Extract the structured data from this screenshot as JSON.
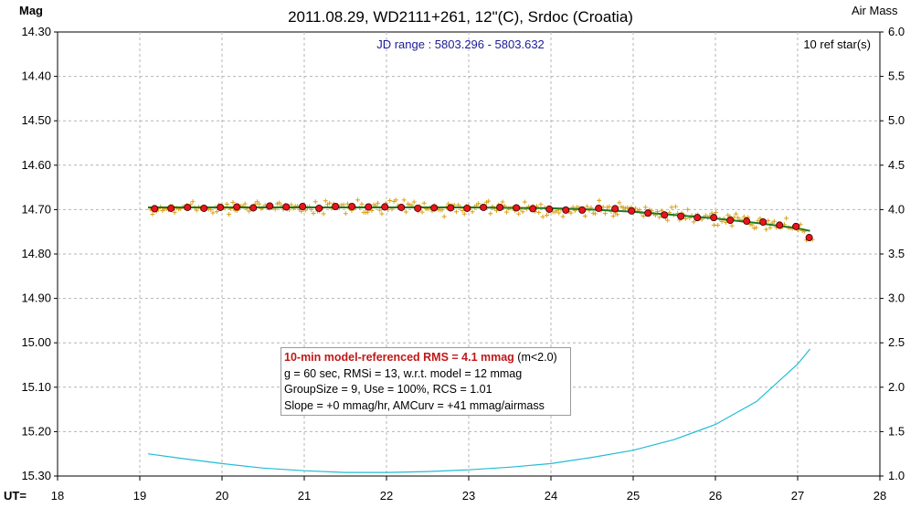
{
  "header": {
    "title": "2011.08.29, WD2111+261, 12\"(C), Srdoc (Croatia)",
    "left_axis_label": "Mag",
    "right_axis_label": "Air Mass",
    "jd_range": "JD range : 5803.296 - 5803.632",
    "ref_stars": "10 ref star(s)",
    "x_axis_prefix": "UT="
  },
  "info": {
    "rms_highlight": "10-min model-referenced RMS = 4.1 mmag",
    "rms_suffix": " (m<2.0)",
    "line2": "g = 60 sec, RMSi = 13, w.r.t. model = 12 mmag",
    "line3": "GroupSize = 9, Use = 100%, RCS = 1.01",
    "line4": "Slope = +0 mmag/hr, AMCurv = +41 mmag/airmass"
  },
  "colors": {
    "raw_points": "#d9a21a",
    "binned_points": "#e8141e",
    "model_line": "#1f7a1f",
    "airmass_line": "#22bcd4",
    "grid": "#b4b4b4"
  },
  "chart_data": {
    "type": "scatter",
    "title": "2011.08.29, WD2111+261, 12\"(C), Srdoc (Croatia)",
    "xlabel": "UT",
    "ylabel": "Mag",
    "y2label": "Air Mass",
    "xlim": [
      18,
      28
    ],
    "ylim": [
      15.3,
      14.3
    ],
    "y2lim": [
      1.0,
      6.0
    ],
    "grid": true,
    "x_ticks": [
      "18",
      "19",
      "20",
      "21",
      "22",
      "23",
      "24",
      "25",
      "26",
      "27",
      "28"
    ],
    "y_ticks": [
      "14.30",
      "14.40",
      "14.50",
      "14.60",
      "14.70",
      "14.80",
      "14.90",
      "15.00",
      "15.10",
      "15.20",
      "15.30"
    ],
    "y2_ticks": [
      "6.0",
      "5.5",
      "5.0",
      "4.5",
      "4.0",
      "3.5",
      "3.0",
      "2.5",
      "2.0",
      "1.5",
      "1.0"
    ],
    "series": [
      {
        "name": "binned",
        "x": [
          19.18,
          19.38,
          19.58,
          19.78,
          19.98,
          20.18,
          20.38,
          20.58,
          20.78,
          20.98,
          21.18,
          21.38,
          21.58,
          21.78,
          21.98,
          22.18,
          22.38,
          22.58,
          22.78,
          22.98,
          23.18,
          23.38,
          23.58,
          23.78,
          23.98,
          24.18,
          24.38,
          24.58,
          24.78,
          24.98,
          25.18,
          25.38,
          25.58,
          25.78,
          25.98,
          26.18,
          26.38,
          26.58,
          26.78,
          26.98,
          27.14
        ],
        "y": [
          14.698,
          14.697,
          14.695,
          14.697,
          14.695,
          14.694,
          14.696,
          14.692,
          14.694,
          14.693,
          14.697,
          14.693,
          14.693,
          14.694,
          14.694,
          14.695,
          14.697,
          14.696,
          14.696,
          14.697,
          14.695,
          14.695,
          14.696,
          14.698,
          14.699,
          14.701,
          14.701,
          14.697,
          14.698,
          14.703,
          14.708,
          14.712,
          14.715,
          14.718,
          14.718,
          14.724,
          14.726,
          14.728,
          14.735,
          14.738,
          14.763
        ]
      },
      {
        "name": "model",
        "x": [
          19.1,
          19.5,
          20.0,
          20.5,
          21.0,
          21.5,
          22.0,
          22.5,
          23.0,
          23.5,
          24.0,
          24.5,
          25.0,
          25.5,
          26.0,
          26.5,
          27.0,
          27.15
        ],
        "y": [
          14.695,
          14.695,
          14.695,
          14.695,
          14.695,
          14.695,
          14.695,
          14.695,
          14.695,
          14.696,
          14.697,
          14.7,
          14.705,
          14.712,
          14.72,
          14.73,
          14.742,
          14.748
        ]
      },
      {
        "name": "airmass",
        "x": [
          19.1,
          19.5,
          20.0,
          20.5,
          21.0,
          21.5,
          22.0,
          22.5,
          23.0,
          23.5,
          24.0,
          24.5,
          25.0,
          25.5,
          26.0,
          26.5,
          27.0,
          27.15
        ],
        "y": [
          1.25,
          1.2,
          1.14,
          1.09,
          1.06,
          1.04,
          1.04,
          1.05,
          1.07,
          1.1,
          1.14,
          1.21,
          1.29,
          1.41,
          1.58,
          1.84,
          2.26,
          2.43
        ]
      }
    ],
    "annotations": [
      "JD range : 5803.296 - 5803.632",
      "10 ref star(s)"
    ]
  }
}
